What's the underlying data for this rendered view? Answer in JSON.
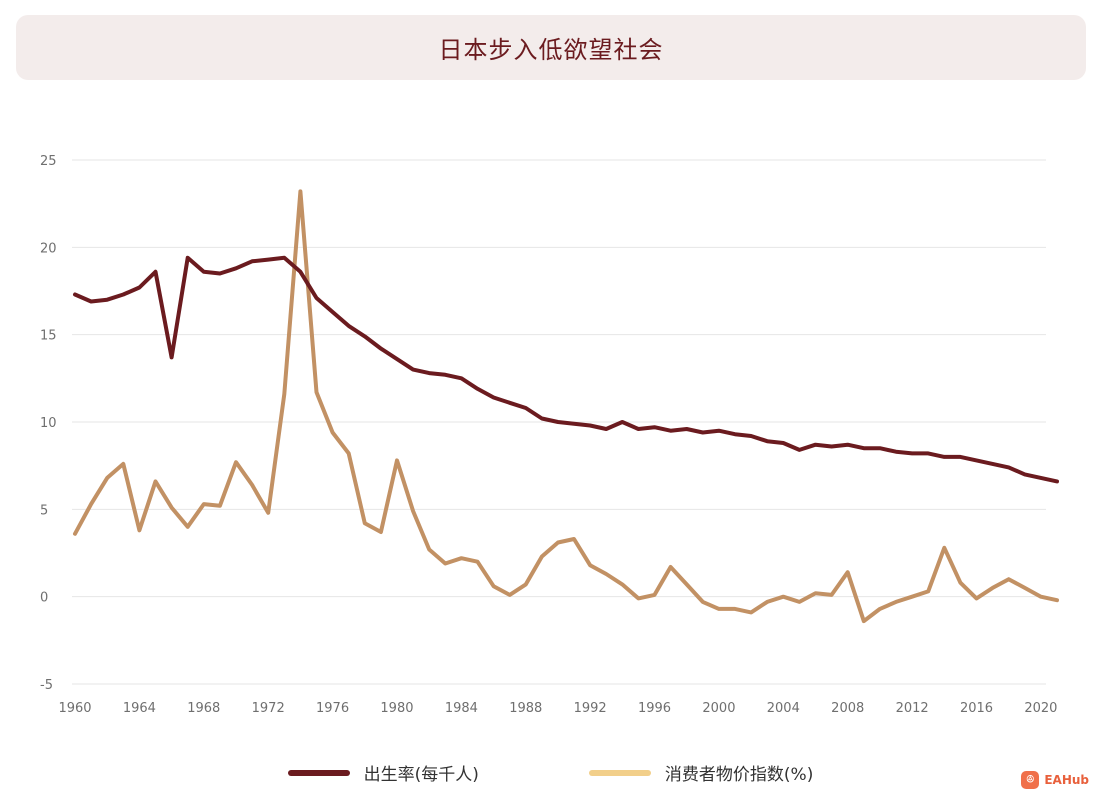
{
  "title": "日本步入低欲望社会",
  "watermark": {
    "text": "EAHub",
    "icon": "ea-icon"
  },
  "legend": {
    "birth_rate": "出生率(每千人)",
    "cpi": "消费者物价指数(%)"
  },
  "colors": {
    "birth_rate": "#6b1b1f",
    "cpi": "#c29164",
    "cpi_legend": "#f2cf8a",
    "grid": "#e6e6e6",
    "title_bg": "#f3eceb"
  },
  "chart_data": {
    "type": "line",
    "title": "日本步入低欲望社会",
    "xlabel": "",
    "ylabel": "",
    "xlim": [
      1960,
      2021
    ],
    "ylim": [
      -5,
      25
    ],
    "y_ticks": [
      -5,
      0,
      5,
      10,
      15,
      20,
      25
    ],
    "x_ticks": [
      1960,
      1964,
      1968,
      1972,
      1976,
      1980,
      1984,
      1988,
      1992,
      1996,
      2000,
      2004,
      2008,
      2012,
      2016,
      2020
    ],
    "grid": true,
    "legend_position": "bottom",
    "series": [
      {
        "name": "出生率(每千人)",
        "key": "birth_rate",
        "points": [
          [
            1960,
            17.3
          ],
          [
            1961,
            16.9
          ],
          [
            1962,
            17.0
          ],
          [
            1963,
            17.3
          ],
          [
            1964,
            17.7
          ],
          [
            1965,
            18.6
          ],
          [
            1966,
            13.7
          ],
          [
            1967,
            19.4
          ],
          [
            1968,
            18.6
          ],
          [
            1969,
            18.5
          ],
          [
            1970,
            18.8
          ],
          [
            1971,
            19.2
          ],
          [
            1972,
            19.3
          ],
          [
            1973,
            19.4
          ],
          [
            1974,
            18.6
          ],
          [
            1975,
            17.1
          ],
          [
            1976,
            16.3
          ],
          [
            1977,
            15.5
          ],
          [
            1978,
            14.9
          ],
          [
            1979,
            14.2
          ],
          [
            1980,
            13.6
          ],
          [
            1981,
            13.0
          ],
          [
            1982,
            12.8
          ],
          [
            1983,
            12.7
          ],
          [
            1984,
            12.5
          ],
          [
            1985,
            11.9
          ],
          [
            1986,
            11.4
          ],
          [
            1987,
            11.1
          ],
          [
            1988,
            10.8
          ],
          [
            1989,
            10.2
          ],
          [
            1990,
            10.0
          ],
          [
            1991,
            9.9
          ],
          [
            1992,
            9.8
          ],
          [
            1993,
            9.6
          ],
          [
            1994,
            10.0
          ],
          [
            1995,
            9.6
          ],
          [
            1996,
            9.7
          ],
          [
            1997,
            9.5
          ],
          [
            1998,
            9.6
          ],
          [
            1999,
            9.4
          ],
          [
            2000,
            9.5
          ],
          [
            2001,
            9.3
          ],
          [
            2002,
            9.2
          ],
          [
            2003,
            8.9
          ],
          [
            2004,
            8.8
          ],
          [
            2005,
            8.4
          ],
          [
            2006,
            8.7
          ],
          [
            2007,
            8.6
          ],
          [
            2008,
            8.7
          ],
          [
            2009,
            8.5
          ],
          [
            2010,
            8.5
          ],
          [
            2011,
            8.3
          ],
          [
            2012,
            8.2
          ],
          [
            2013,
            8.2
          ],
          [
            2014,
            8.0
          ],
          [
            2015,
            8.0
          ],
          [
            2016,
            7.8
          ],
          [
            2017,
            7.6
          ],
          [
            2018,
            7.4
          ],
          [
            2019,
            7.0
          ],
          [
            2020,
            6.8
          ],
          [
            2021,
            6.6
          ]
        ]
      },
      {
        "name": "消费者物价指数(%)",
        "key": "cpi",
        "points": [
          [
            1960,
            3.6
          ],
          [
            1961,
            5.3
          ],
          [
            1962,
            6.8
          ],
          [
            1963,
            7.6
          ],
          [
            1964,
            3.8
          ],
          [
            1965,
            6.6
          ],
          [
            1966,
            5.1
          ],
          [
            1967,
            4.0
          ],
          [
            1968,
            5.3
          ],
          [
            1969,
            5.2
          ],
          [
            1970,
            7.7
          ],
          [
            1971,
            6.4
          ],
          [
            1972,
            4.8
          ],
          [
            1973,
            11.6
          ],
          [
            1974,
            23.2
          ],
          [
            1975,
            11.7
          ],
          [
            1976,
            9.4
          ],
          [
            1977,
            8.2
          ],
          [
            1978,
            4.2
          ],
          [
            1979,
            3.7
          ],
          [
            1980,
            7.8
          ],
          [
            1981,
            4.9
          ],
          [
            1982,
            2.7
          ],
          [
            1983,
            1.9
          ],
          [
            1984,
            2.2
          ],
          [
            1985,
            2.0
          ],
          [
            1986,
            0.6
          ],
          [
            1987,
            0.1
          ],
          [
            1988,
            0.7
          ],
          [
            1989,
            2.3
          ],
          [
            1990,
            3.1
          ],
          [
            1991,
            3.3
          ],
          [
            1992,
            1.8
          ],
          [
            1993,
            1.3
          ],
          [
            1994,
            0.7
          ],
          [
            1995,
            -0.1
          ],
          [
            1996,
            0.1
          ],
          [
            1997,
            1.7
          ],
          [
            1998,
            0.7
          ],
          [
            1999,
            -0.3
          ],
          [
            2000,
            -0.7
          ],
          [
            2001,
            -0.7
          ],
          [
            2002,
            -0.9
          ],
          [
            2003,
            -0.3
          ],
          [
            2004,
            0.0
          ],
          [
            2005,
            -0.3
          ],
          [
            2006,
            0.2
          ],
          [
            2007,
            0.1
          ],
          [
            2008,
            1.4
          ],
          [
            2009,
            -1.4
          ],
          [
            2010,
            -0.7
          ],
          [
            2011,
            -0.3
          ],
          [
            2012,
            0.0
          ],
          [
            2013,
            0.3
          ],
          [
            2014,
            2.8
          ],
          [
            2015,
            0.8
          ],
          [
            2016,
            -0.1
          ],
          [
            2017,
            0.5
          ],
          [
            2018,
            1.0
          ],
          [
            2019,
            0.5
          ],
          [
            2020,
            0.0
          ],
          [
            2021,
            -0.2
          ]
        ]
      }
    ]
  }
}
